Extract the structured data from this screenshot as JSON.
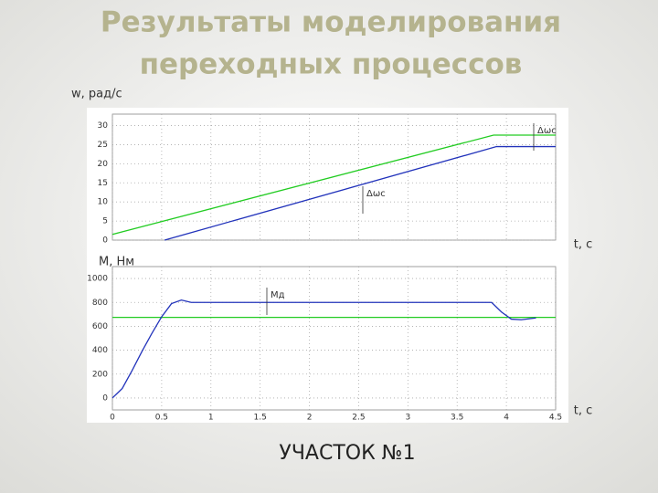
{
  "title": [
    "Результаты моделирования",
    "переходных процессов"
  ],
  "footer": "УЧАСТОК №1",
  "chart_data": [
    {
      "type": "line",
      "ylabel": "w, рад/с",
      "xlabel": "t, с",
      "xlim": [
        0,
        4.5
      ],
      "xticks": [
        0,
        0.5,
        1,
        1.5,
        2,
        2.5,
        3,
        3.5,
        4,
        4.5
      ],
      "show_xtick_labels": false,
      "ylim": [
        0,
        33
      ],
      "yticks": [
        0,
        5,
        10,
        15,
        20,
        25,
        30
      ],
      "grid": true,
      "annotations": [
        "Δωс",
        "Δωс"
      ],
      "series": [
        {
          "color": "#22cc22",
          "x": [
            0,
            3.87,
            4.5
          ],
          "values": [
            1.5,
            27.5,
            27.5
          ]
        },
        {
          "color": "#2233bb",
          "x": [
            0.53,
            3.9,
            4.5
          ],
          "values": [
            0,
            24.5,
            24.5
          ]
        }
      ]
    },
    {
      "type": "line",
      "ylabel": "M, Нм",
      "xlabel": "t, с",
      "xlim": [
        0,
        4.5
      ],
      "xticks": [
        0,
        0.5,
        1,
        1.5,
        2,
        2.5,
        3,
        3.5,
        4,
        4.5
      ],
      "show_xtick_labels": true,
      "ylim": [
        -100,
        1100
      ],
      "yticks": [
        0,
        200,
        400,
        600,
        800,
        1000
      ],
      "grid": true,
      "annotations": [
        "Mд"
      ],
      "series": [
        {
          "color": "#22cc22",
          "x": [
            0,
            4.5
          ],
          "values": [
            675,
            675
          ]
        },
        {
          "color": "#2233bb",
          "x": [
            0,
            0.1,
            0.2,
            0.3,
            0.4,
            0.5,
            0.6,
            0.7,
            0.8,
            1.0,
            3.85,
            3.95,
            4.05,
            4.15,
            4.3
          ],
          "values": [
            0,
            80,
            230,
            390,
            540,
            680,
            790,
            820,
            800,
            800,
            800,
            720,
            660,
            655,
            670
          ]
        }
      ]
    }
  ]
}
